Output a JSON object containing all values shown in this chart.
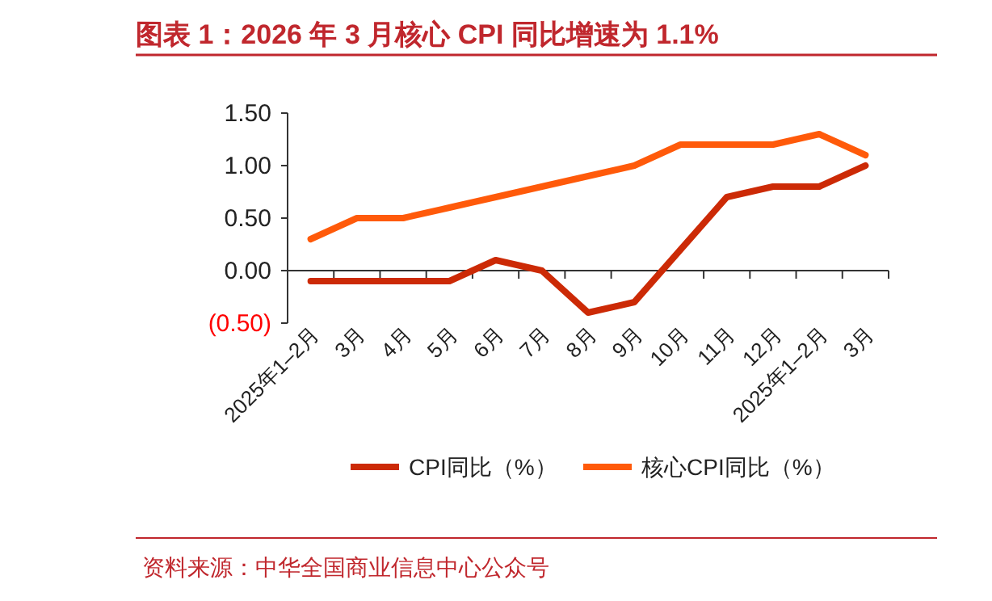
{
  "chart_data": {
    "type": "line",
    "title": "图表 1：2026 年 3 月核心 CPI 同比增速为 1.1%",
    "categories": [
      "2025年1–2月",
      "3月",
      "4月",
      "5月",
      "6月",
      "7月",
      "8月",
      "9月",
      "10月",
      "11月",
      "12月",
      "2025年1–2月",
      "3月"
    ],
    "series": [
      {
        "name": "CPI同比（%）",
        "color": "#cc2a06",
        "values": [
          -0.1,
          -0.1,
          -0.1,
          -0.1,
          0.1,
          0.0,
          -0.4,
          -0.3,
          0.2,
          0.7,
          0.8,
          0.8,
          1.0
        ]
      },
      {
        "name": "核心CPI同比（%）",
        "color": "#ff5a0a",
        "values": [
          0.3,
          0.5,
          0.5,
          0.6,
          0.7,
          0.8,
          0.9,
          1.0,
          1.2,
          1.2,
          1.2,
          1.3,
          1.1
        ]
      }
    ],
    "ylim": [
      -0.5,
      1.5
    ],
    "yticks": [
      {
        "value": -0.5,
        "label": "(0.50)"
      },
      {
        "value": 0,
        "label": "0.00"
      },
      {
        "value": 0.5,
        "label": "0.50"
      },
      {
        "value": 1,
        "label": "1.00"
      },
      {
        "value": 1.5,
        "label": "1.50"
      }
    ],
    "grid": false,
    "legend": "bottom",
    "marker": "none",
    "line_style": "solid",
    "annotations": [
      "资料来源：中华全国商业信息中心公众号"
    ]
  }
}
